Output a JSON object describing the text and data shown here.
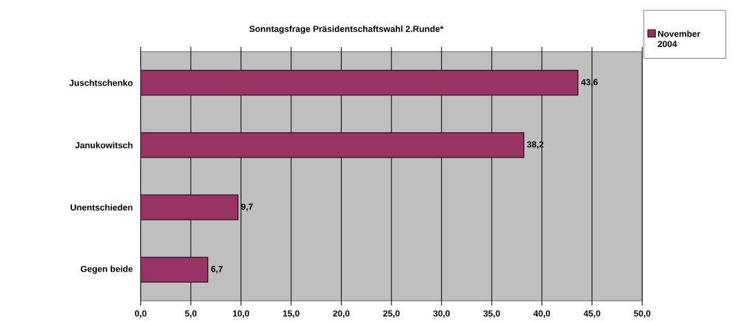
{
  "chart_data": {
    "type": "bar",
    "orientation": "horizontal",
    "title": "Sonntagsfrage Präsidentschaftswahl 2.Runde*",
    "categories": [
      "Juschtschenko",
      "Janukowitsch",
      "Unentschieden",
      "Gegen beide"
    ],
    "series": [
      {
        "name": "November 2004",
        "color": "#993366",
        "values": [
          43.6,
          38.2,
          9.7,
          6.7
        ],
        "value_labels": [
          "43,6",
          "38,2",
          "9,7",
          "6,7"
        ]
      }
    ],
    "xlim": [
      0,
      50
    ],
    "xticks": [
      {
        "value": 0,
        "label": "0,0"
      },
      {
        "value": 5,
        "label": "5,0"
      },
      {
        "value": 10,
        "label": "10,0"
      },
      {
        "value": 15,
        "label": "15,0"
      },
      {
        "value": 20,
        "label": "20,0"
      },
      {
        "value": 25,
        "label": "25,0"
      },
      {
        "value": 30,
        "label": "30,0"
      },
      {
        "value": 35,
        "label": "35,0"
      },
      {
        "value": 40,
        "label": "40,0"
      },
      {
        "value": 45,
        "label": "45,0"
      },
      {
        "value": 50,
        "label": "50,0"
      }
    ],
    "grid": "x",
    "legend": "top right"
  }
}
